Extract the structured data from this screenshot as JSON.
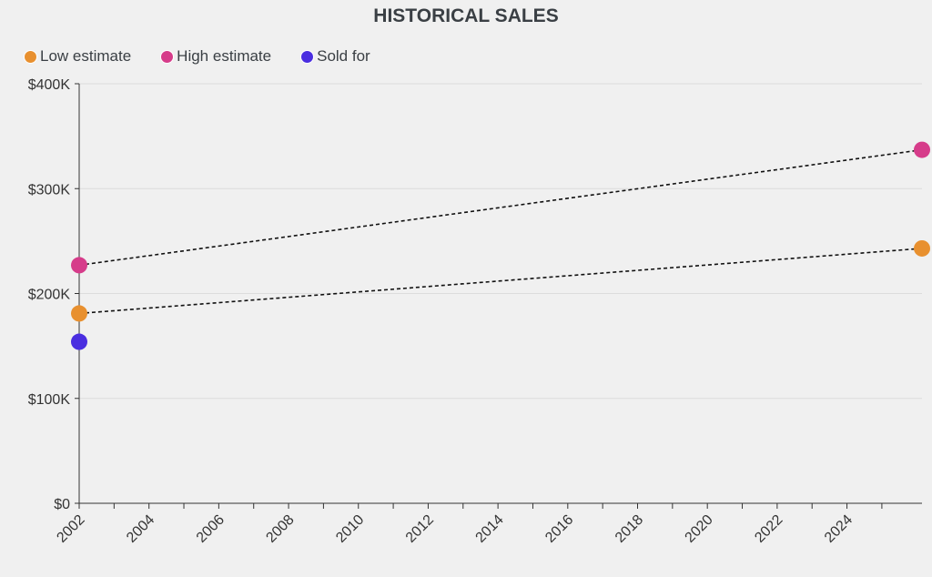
{
  "chart_data": {
    "type": "scatter",
    "title": "HISTORICAL SALES",
    "xlabel": "",
    "ylabel": "",
    "xlim": [
      2002,
      2026.15
    ],
    "ylim": [
      0,
      400000
    ],
    "x_ticks": [
      2002,
      2003,
      2004,
      2005,
      2006,
      2007,
      2008,
      2009,
      2010,
      2011,
      2012,
      2013,
      2014,
      2015,
      2016,
      2017,
      2018,
      2019,
      2020,
      2021,
      2022,
      2023,
      2024,
      2025
    ],
    "x_tick_labels": [
      "2002",
      "2004",
      "2006",
      "2008",
      "2010",
      "2012",
      "2014",
      "2016",
      "2018",
      "2020",
      "2022",
      "2024"
    ],
    "x_tick_label_values": [
      2002,
      2004,
      2006,
      2008,
      2010,
      2012,
      2014,
      2016,
      2018,
      2020,
      2022,
      2024
    ],
    "y_ticks": [
      0,
      100000,
      200000,
      300000,
      400000
    ],
    "y_tick_labels": [
      "$0",
      "$100K",
      "$200K",
      "$300K",
      "$400K"
    ],
    "grid": "horizontal",
    "legend_position": "top-left",
    "series": [
      {
        "name": "Low estimate",
        "color": "#e8902f",
        "points": [
          [
            2002,
            181000
          ],
          [
            2026.15,
            243000
          ]
        ],
        "trend_line": true
      },
      {
        "name": "High estimate",
        "color": "#d63c8a",
        "points": [
          [
            2002,
            227000
          ],
          [
            2026.15,
            337000
          ]
        ],
        "trend_line": true
      },
      {
        "name": "Sold for",
        "color": "#4a2ee0",
        "points": [
          [
            2002,
            154000
          ]
        ],
        "trend_line": false
      }
    ]
  }
}
